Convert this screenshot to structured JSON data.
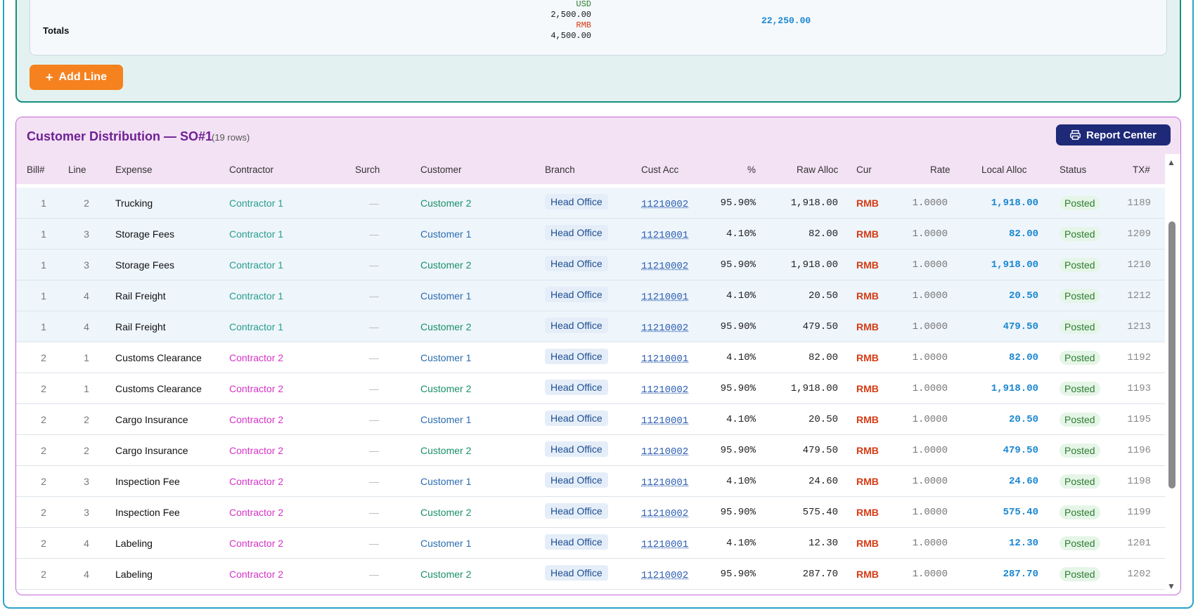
{
  "totals": {
    "label": "Totals",
    "usd_label": "USD",
    "usd_value": "2,500.00",
    "rmb_label": "RMB",
    "rmb_value": "4,500.00",
    "grand_total": "22,250.00",
    "usd_color": "#2e7d32",
    "rmb_color": "#d63b14"
  },
  "add_line_label": "Add Line",
  "distribution": {
    "title": "Customer Distribution — SO#1",
    "rows_count": "(19 rows)",
    "report_button": "Report Center",
    "columns": [
      "Bill#",
      "Line",
      "Expense",
      "Contractor",
      "Surch",
      "Customer",
      "Branch",
      "Cust Acc",
      "%",
      "Raw Alloc",
      "Cur",
      "Rate",
      "Local Alloc",
      "Status",
      "TX#"
    ],
    "rows": [
      {
        "bill": "1",
        "line": "2",
        "expense": "Trucking",
        "contractor": "Contractor 1",
        "surch": "—",
        "customer": "Customer 2",
        "branch": "Head Office",
        "acc": "11210002",
        "pct": "95.90%",
        "raw": "1,918.00",
        "cur": "RMB",
        "rate": "1.0000",
        "local": "1,918.00",
        "status": "Posted",
        "tx": "1189"
      },
      {
        "bill": "1",
        "line": "3",
        "expense": "Storage Fees",
        "contractor": "Contractor 1",
        "surch": "—",
        "customer": "Customer 1",
        "branch": "Head Office",
        "acc": "11210001",
        "pct": "4.10%",
        "raw": "82.00",
        "cur": "RMB",
        "rate": "1.0000",
        "local": "82.00",
        "status": "Posted",
        "tx": "1209"
      },
      {
        "bill": "1",
        "line": "3",
        "expense": "Storage Fees",
        "contractor": "Contractor 1",
        "surch": "—",
        "customer": "Customer 2",
        "branch": "Head Office",
        "acc": "11210002",
        "pct": "95.90%",
        "raw": "1,918.00",
        "cur": "RMB",
        "rate": "1.0000",
        "local": "1,918.00",
        "status": "Posted",
        "tx": "1210"
      },
      {
        "bill": "1",
        "line": "4",
        "expense": "Rail Freight",
        "contractor": "Contractor 1",
        "surch": "—",
        "customer": "Customer 1",
        "branch": "Head Office",
        "acc": "11210001",
        "pct": "4.10%",
        "raw": "20.50",
        "cur": "RMB",
        "rate": "1.0000",
        "local": "20.50",
        "status": "Posted",
        "tx": "1212"
      },
      {
        "bill": "1",
        "line": "4",
        "expense": "Rail Freight",
        "contractor": "Contractor 1",
        "surch": "—",
        "customer": "Customer 2",
        "branch": "Head Office",
        "acc": "11210002",
        "pct": "95.90%",
        "raw": "479.50",
        "cur": "RMB",
        "rate": "1.0000",
        "local": "479.50",
        "status": "Posted",
        "tx": "1213"
      },
      {
        "bill": "2",
        "line": "1",
        "expense": "Customs Clearance",
        "contractor": "Contractor 2",
        "surch": "—",
        "customer": "Customer 1",
        "branch": "Head Office",
        "acc": "11210001",
        "pct": "4.10%",
        "raw": "82.00",
        "cur": "RMB",
        "rate": "1.0000",
        "local": "82.00",
        "status": "Posted",
        "tx": "1192"
      },
      {
        "bill": "2",
        "line": "1",
        "expense": "Customs Clearance",
        "contractor": "Contractor 2",
        "surch": "—",
        "customer": "Customer 2",
        "branch": "Head Office",
        "acc": "11210002",
        "pct": "95.90%",
        "raw": "1,918.00",
        "cur": "RMB",
        "rate": "1.0000",
        "local": "1,918.00",
        "status": "Posted",
        "tx": "1193"
      },
      {
        "bill": "2",
        "line": "2",
        "expense": "Cargo Insurance",
        "contractor": "Contractor 2",
        "surch": "—",
        "customer": "Customer 1",
        "branch": "Head Office",
        "acc": "11210001",
        "pct": "4.10%",
        "raw": "20.50",
        "cur": "RMB",
        "rate": "1.0000",
        "local": "20.50",
        "status": "Posted",
        "tx": "1195"
      },
      {
        "bill": "2",
        "line": "2",
        "expense": "Cargo Insurance",
        "contractor": "Contractor 2",
        "surch": "—",
        "customer": "Customer 2",
        "branch": "Head Office",
        "acc": "11210002",
        "pct": "95.90%",
        "raw": "479.50",
        "cur": "RMB",
        "rate": "1.0000",
        "local": "479.50",
        "status": "Posted",
        "tx": "1196"
      },
      {
        "bill": "2",
        "line": "3",
        "expense": "Inspection Fee",
        "contractor": "Contractor 2",
        "surch": "—",
        "customer": "Customer 1",
        "branch": "Head Office",
        "acc": "11210001",
        "pct": "4.10%",
        "raw": "24.60",
        "cur": "RMB",
        "rate": "1.0000",
        "local": "24.60",
        "status": "Posted",
        "tx": "1198"
      },
      {
        "bill": "2",
        "line": "3",
        "expense": "Inspection Fee",
        "contractor": "Contractor 2",
        "surch": "—",
        "customer": "Customer 2",
        "branch": "Head Office",
        "acc": "11210002",
        "pct": "95.90%",
        "raw": "575.40",
        "cur": "RMB",
        "rate": "1.0000",
        "local": "575.40",
        "status": "Posted",
        "tx": "1199"
      },
      {
        "bill": "2",
        "line": "4",
        "expense": "Labeling",
        "contractor": "Contractor 2",
        "surch": "—",
        "customer": "Customer 1",
        "branch": "Head Office",
        "acc": "11210001",
        "pct": "4.10%",
        "raw": "12.30",
        "cur": "RMB",
        "rate": "1.0000",
        "local": "12.30",
        "status": "Posted",
        "tx": "1201"
      },
      {
        "bill": "2",
        "line": "4",
        "expense": "Labeling",
        "contractor": "Contractor 2",
        "surch": "—",
        "customer": "Customer 2",
        "branch": "Head Office",
        "acc": "11210002",
        "pct": "95.90%",
        "raw": "287.70",
        "cur": "RMB",
        "rate": "1.0000",
        "local": "287.70",
        "status": "Posted",
        "tx": "1202"
      }
    ]
  },
  "colors": {
    "contractor_1": "#2a9d8f",
    "contractor_2": "#d633c8",
    "customer_1": "#2c6db0",
    "customer_2": "#1a9068",
    "accent_teal": "#178f7c",
    "accent_purple": "#6e2194",
    "report_button": "#1e2a78",
    "add_line": "#f5821f"
  }
}
